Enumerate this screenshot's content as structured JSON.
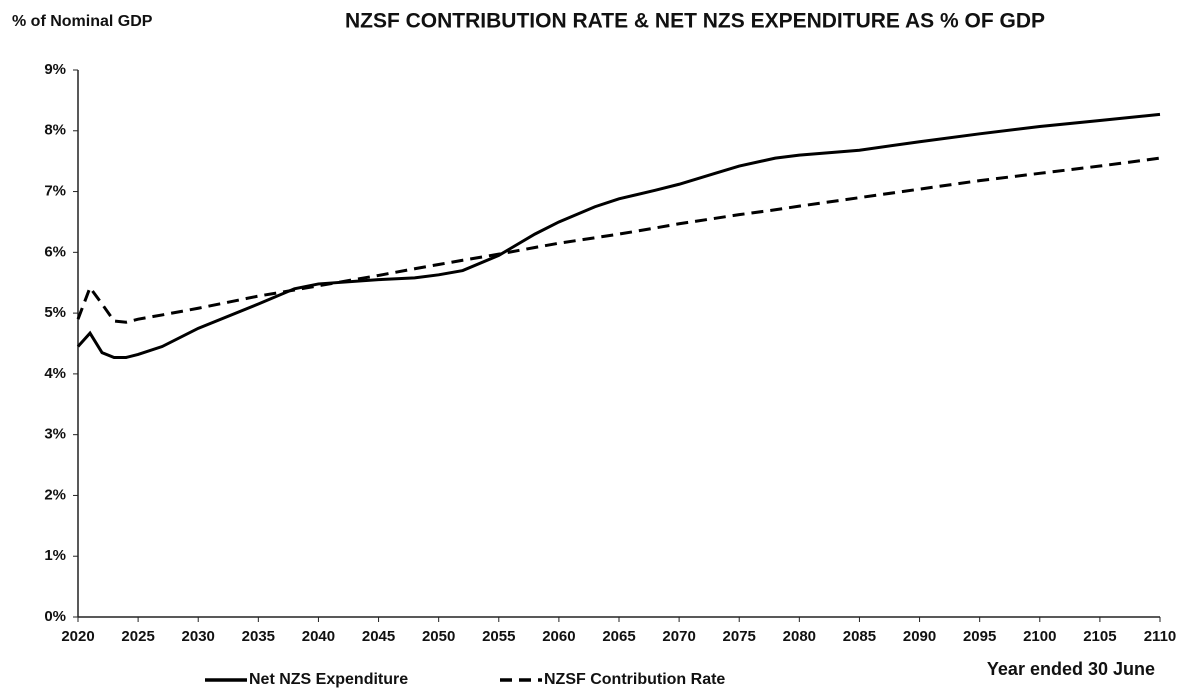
{
  "chart_data": {
    "type": "line",
    "title": "NZSF CONTRIBUTION RATE & NET NZS EXPENDITURE AS % OF GDP",
    "y_label": "% of Nominal GDP",
    "x_label": "Year ended 30 June",
    "x": [
      2020,
      2021,
      2022,
      2023,
      2024,
      2025,
      2027,
      2030,
      2035,
      2038,
      2040,
      2045,
      2048,
      2050,
      2052,
      2055,
      2058,
      2060,
      2063,
      2065,
      2068,
      2070,
      2073,
      2075,
      2078,
      2080,
      2085,
      2090,
      2095,
      2100,
      2105,
      2110
    ],
    "series": [
      {
        "name": "Net NZS Expenditure",
        "color": "#000000",
        "dash": "solid",
        "values": [
          4.45,
          4.67,
          4.35,
          4.27,
          4.27,
          4.32,
          4.45,
          4.75,
          5.15,
          5.4,
          5.48,
          5.55,
          5.58,
          5.63,
          5.7,
          5.95,
          6.3,
          6.5,
          6.75,
          6.88,
          7.02,
          7.12,
          7.3,
          7.42,
          7.55,
          7.6,
          7.68,
          7.82,
          7.95,
          8.07,
          8.17,
          8.27
        ]
      },
      {
        "name": "NZSF Contribution Rate",
        "color": "#000000",
        "dash": "dashed",
        "values": [
          4.9,
          5.42,
          5.15,
          4.87,
          4.85,
          4.9,
          4.97,
          5.08,
          5.28,
          5.38,
          5.45,
          5.62,
          5.73,
          5.8,
          5.87,
          5.97,
          6.08,
          6.15,
          6.24,
          6.3,
          6.4,
          6.47,
          6.56,
          6.62,
          6.7,
          6.76,
          6.9,
          7.04,
          7.18,
          7.3,
          7.42,
          7.55
        ]
      }
    ],
    "xlim": [
      2020,
      2110
    ],
    "xticks": [
      2020,
      2025,
      2030,
      2035,
      2040,
      2045,
      2050,
      2055,
      2060,
      2065,
      2070,
      2075,
      2080,
      2085,
      2090,
      2095,
      2100,
      2105,
      2110
    ],
    "ylim": [
      0,
      9
    ],
    "yticks": [
      {
        "value": 0,
        "label": "0%"
      },
      {
        "value": 1,
        "label": "1%"
      },
      {
        "value": 2,
        "label": "2%"
      },
      {
        "value": 3,
        "label": "3%"
      },
      {
        "value": 4,
        "label": "4%"
      },
      {
        "value": 5,
        "label": "5%"
      },
      {
        "value": 6,
        "label": "6%"
      },
      {
        "value": 7,
        "label": "7%"
      },
      {
        "value": 8,
        "label": "8%"
      },
      {
        "value": 9,
        "label": "9%"
      }
    ],
    "grid": false,
    "legend": "bottom"
  }
}
